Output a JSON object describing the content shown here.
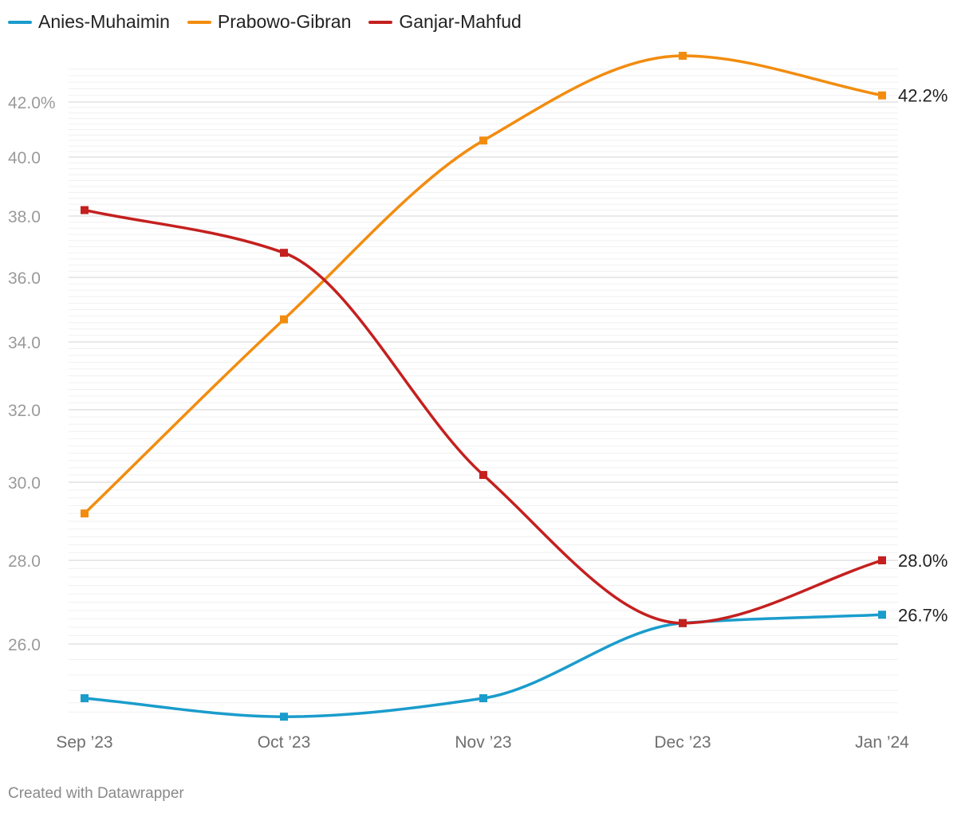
{
  "credit": "Created with Datawrapper",
  "chart_data": {
    "type": "line",
    "curve": "smooth",
    "x": [
      "Sep ’23",
      "Oct ’23",
      "Nov ’23",
      "Dec ’23",
      "Jan ’24"
    ],
    "y_ticks": [
      {
        "value": 26,
        "label": "26.0"
      },
      {
        "value": 28,
        "label": "28.0"
      },
      {
        "value": 30,
        "label": "30.0"
      },
      {
        "value": 32,
        "label": "32.0"
      },
      {
        "value": 34,
        "label": "34.0"
      },
      {
        "value": 36,
        "label": "36.0"
      },
      {
        "value": 38,
        "label": "38.0"
      },
      {
        "value": 40,
        "label": "40.0"
      },
      {
        "value": 42,
        "label": "42.0%"
      }
    ],
    "ylim": [
      24.8,
      43.4
    ],
    "y_scale": "nonlinear",
    "grid": true,
    "legend": "top-left",
    "series": [
      {
        "name": "Anies-Muhaimin",
        "color": "#1a9ccc",
        "values": [
          25.3,
          24.9,
          25.3,
          26.5,
          26.7
        ],
        "end_label": "26.7%"
      },
      {
        "name": "Prabowo-Gibran",
        "color": "#f28c0f",
        "values": [
          29.2,
          34.7,
          40.6,
          43.4,
          42.2
        ],
        "end_label": "42.2%"
      },
      {
        "name": "Ganjar-Mahfud",
        "color": "#c4201f",
        "values": [
          38.2,
          36.8,
          30.2,
          26.5,
          28.0
        ],
        "end_label": "28.0%"
      }
    ]
  }
}
